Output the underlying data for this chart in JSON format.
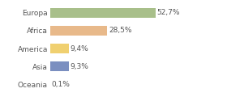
{
  "categories": [
    "Europa",
    "Africa",
    "America",
    "Asia",
    "Oceania"
  ],
  "values": [
    52.7,
    28.5,
    9.4,
    9.3,
    0.1
  ],
  "labels": [
    "52,7%",
    "28,5%",
    "9,4%",
    "9,3%",
    "0,1%"
  ],
  "bar_colors": [
    "#a8bf8a",
    "#e8b98a",
    "#f0d070",
    "#7b8fc0",
    "#d0d0d0"
  ],
  "background_color": "#ffffff",
  "xlim": [
    0,
    68
  ],
  "bar_height": 0.55,
  "label_fontsize": 6.5,
  "tick_fontsize": 6.5,
  "grid_color": "#dddddd"
}
